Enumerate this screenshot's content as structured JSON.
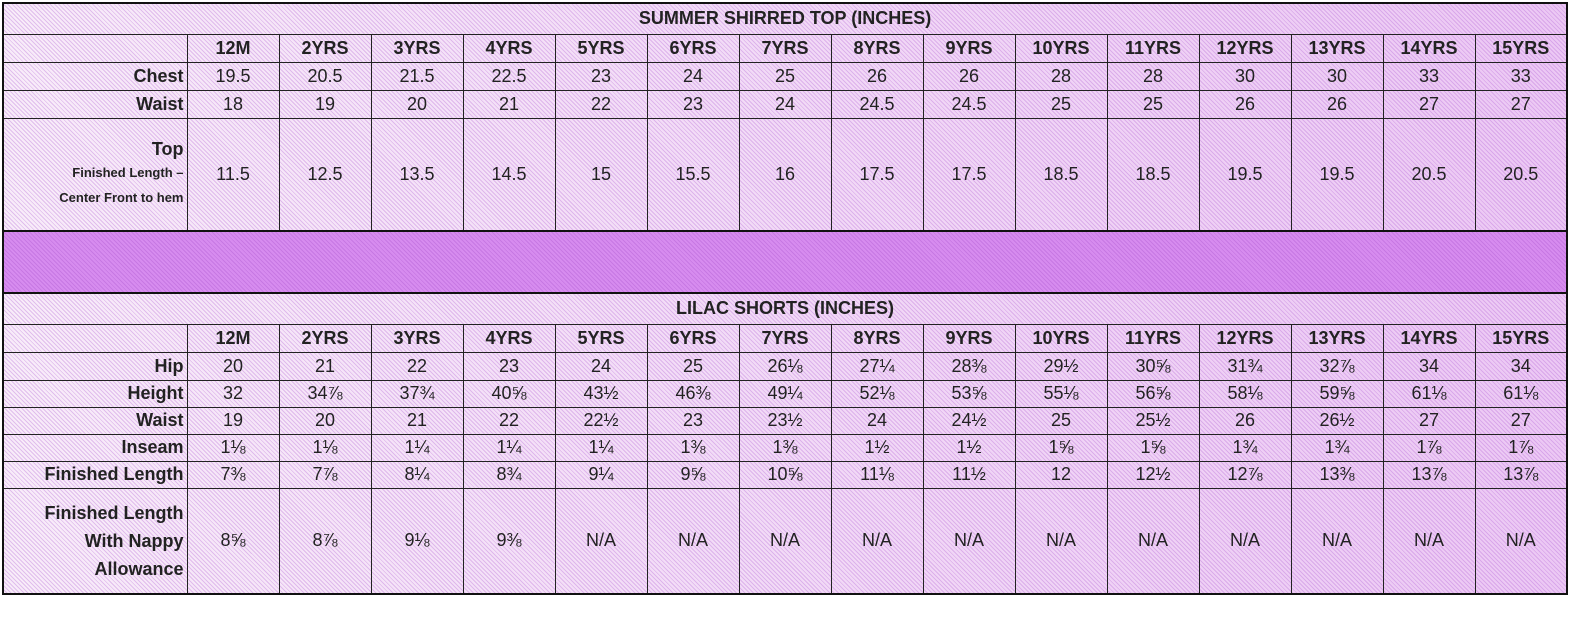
{
  "tables": [
    {
      "title": "SUMMER SHIRRED TOP (INCHES)",
      "headers": [
        "12M",
        "2YRS",
        "3YRS",
        "4YRS",
        "5YRS",
        "6YRS",
        "7YRS",
        "8YRS",
        "9YRS",
        "10YRS",
        "11YRS",
        "12YRS",
        "13YRS",
        "14YRS",
        "15YRS"
      ],
      "rows": [
        {
          "label_lines": [
            "Chest"
          ],
          "values": [
            "19.5",
            "20.5",
            "21.5",
            "22.5",
            "23",
            "24",
            "25",
            "26",
            "26",
            "28",
            "28",
            "30",
            "30",
            "33",
            "33"
          ]
        },
        {
          "label_lines": [
            "Waist"
          ],
          "values": [
            "18",
            "19",
            "20",
            "21",
            "22",
            "23",
            "24",
            "24.5",
            "24.5",
            "25",
            "25",
            "26",
            "26",
            "27",
            "27"
          ]
        },
        {
          "label_lines": [
            "Top"
          ],
          "note_lines": [
            "Finished Length –",
            "Center Front to hem"
          ],
          "values": [
            "11.5",
            "12.5",
            "13.5",
            "14.5",
            "15",
            "15.5",
            "16",
            "17.5",
            "17.5",
            "18.5",
            "18.5",
            "19.5",
            "19.5",
            "20.5",
            "20.5"
          ]
        }
      ]
    },
    {
      "title": "LILAC SHORTS (INCHES)",
      "headers": [
        "12M",
        "2YRS",
        "3YRS",
        "4YRS",
        "5YRS",
        "6YRS",
        "7YRS",
        "8YRS",
        "9YRS",
        "10YRS",
        "11YRS",
        "12YRS",
        "13YRS",
        "14YRS",
        "15YRS"
      ],
      "rows": [
        {
          "label_lines": [
            "Hip"
          ],
          "values": [
            "20",
            "21",
            "22",
            "23",
            "24",
            "25",
            "26⅛",
            "27¼",
            "28⅜",
            "29½",
            "30⅝",
            "31¾",
            "32⅞",
            "34",
            "34"
          ]
        },
        {
          "label_lines": [
            "Height"
          ],
          "values": [
            "32",
            "34⅞",
            "37¾",
            "40⅝",
            "43½",
            "46⅜",
            "49¼",
            "52⅛",
            "53⅝",
            "55⅛",
            "56⅝",
            "58⅛",
            "59⅝",
            "61⅛",
            "61⅛"
          ]
        },
        {
          "label_lines": [
            "Waist"
          ],
          "values": [
            "19",
            "20",
            "21",
            "22",
            "22½",
            "23",
            "23½",
            "24",
            "24½",
            "25",
            "25½",
            "26",
            "26½",
            "27",
            "27"
          ]
        },
        {
          "label_lines": [
            "Inseam"
          ],
          "values": [
            "1⅛",
            "1⅛",
            "1¼",
            "1¼",
            "1¼",
            "1⅜",
            "1⅜",
            "1½",
            "1½",
            "1⅝",
            "1⅝",
            "1¾",
            "1¾",
            "1⅞",
            "1⅞"
          ]
        },
        {
          "label_lines": [
            "Finished Length"
          ],
          "values": [
            "7⅜",
            "7⅞",
            "8¼",
            "8¾",
            "9¼",
            "9⅝",
            "10⅝",
            "11⅛",
            "11½",
            "12",
            "12½",
            "12⅞",
            "13⅜",
            "13⅞",
            "13⅞"
          ]
        },
        {
          "label_lines": [
            "Finished Length",
            "With Nappy",
            "Allowance"
          ],
          "values": [
            "8⅝",
            "8⅞",
            "9⅛",
            "9⅜",
            "N/A",
            "N/A",
            "N/A",
            "N/A",
            "N/A",
            "N/A",
            "N/A",
            "N/A",
            "N/A",
            "N/A",
            "N/A"
          ]
        }
      ]
    }
  ]
}
